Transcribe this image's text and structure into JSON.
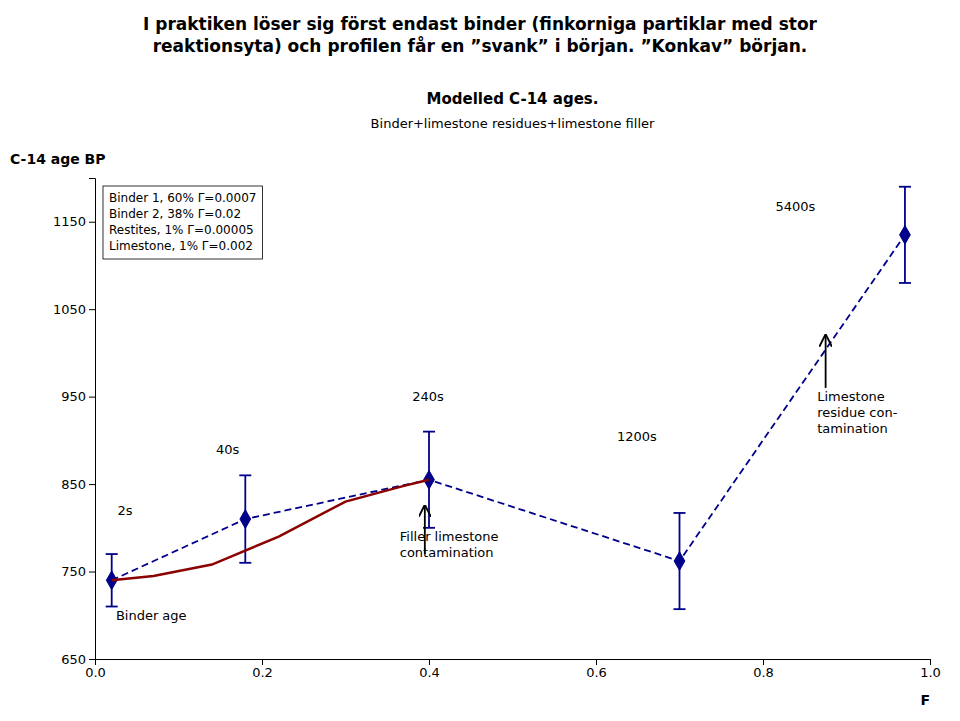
{
  "chart_data": {
    "type": "line",
    "heading": "I praktiken löser sig först endast binder (finkorniga partiklar med stor\nreaktionsyta) och profilen får en ”svank” i början. ”Konkav” början.",
    "title": "Modelled C-14 ages.",
    "subtitle": "Binder+limestone residues+limestone filler",
    "ylabel": "C-14 age BP",
    "xlabel": "F",
    "text_box": "Binder 1, 60%  Γ=0.0007\nBinder 2, 38%  Γ=0.02\nRestites, 1%  Γ=0.00005\nLimestone, 1%  Γ=0.002",
    "xlim": [
      0,
      1
    ],
    "ylim": [
      650,
      1200
    ],
    "xticks": [
      {
        "value": 0,
        "label": "0.0"
      },
      0.2,
      0.4,
      0.6,
      0.8,
      {
        "value": 1.0,
        "label": "1.0"
      }
    ],
    "yticks": [
      650,
      750,
      850,
      950,
      1050,
      1150
    ],
    "grid": false,
    "series": [
      {
        "x": [
          0.02,
          0.18,
          0.4,
          0.7,
          0.97
        ],
        "values": [
          740,
          810,
          855,
          762,
          1135
        ],
        "errors": [
          30,
          50,
          55,
          55,
          55
        ],
        "color": "#00008B",
        "line_style": "dashed",
        "marker": "diamond"
      },
      {
        "x": [
          0.02,
          0.07,
          0.14,
          0.22,
          0.3,
          0.37,
          0.4
        ],
        "values": [
          740,
          745,
          758,
          790,
          830,
          848,
          855
        ],
        "color": "#8B0000",
        "line_style": "solid"
      }
    ],
    "annotations": [
      {
        "text": "2s",
        "x": 0.027,
        "y": 810,
        "anchor": "bottom"
      },
      {
        "text": "Binder age",
        "x": 0.025,
        "y": 710,
        "anchor": "top"
      },
      {
        "text": "40s",
        "x": 0.145,
        "y": 880,
        "anchor": "bottom"
      },
      {
        "text": "240s",
        "x": 0.38,
        "y": 940,
        "anchor": "bottom"
      },
      {
        "text": "Filler limestone\ncontamination",
        "x": 0.365,
        "y": 800,
        "anchor": "top"
      },
      {
        "text": "1200s",
        "x": 0.625,
        "y": 895,
        "anchor": "bottom"
      },
      {
        "text": "5400s",
        "x": 0.815,
        "y": 1158,
        "anchor": "bottom"
      },
      {
        "text": "Limestone\nresidue con-\ntamination",
        "x": 0.865,
        "y": 960,
        "anchor": "top"
      }
    ],
    "arrows": [
      {
        "x": 0.395,
        "y_from": 770,
        "y_to": 825
      },
      {
        "x": 0.875,
        "y_from": 960,
        "y_to": 1020
      }
    ]
  }
}
